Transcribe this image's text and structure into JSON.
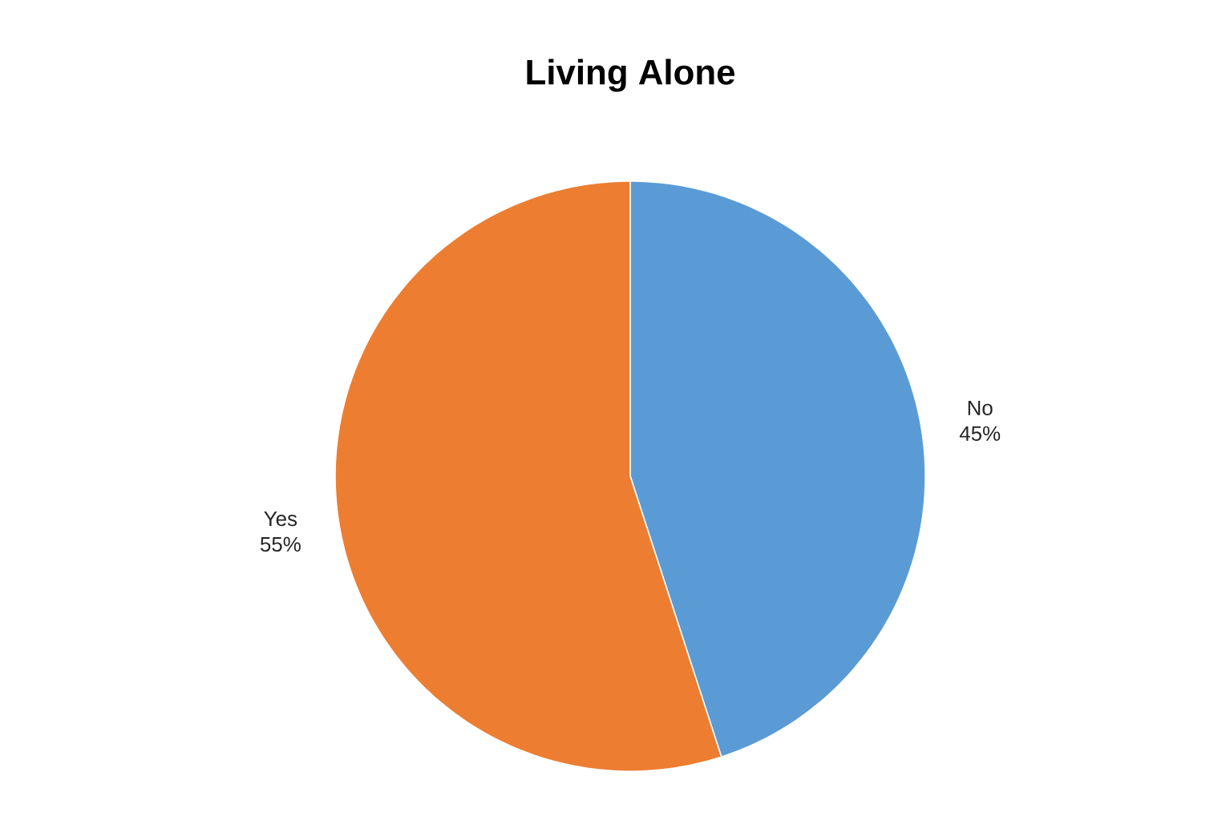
{
  "chart_data": {
    "type": "pie",
    "title": "Living Alone",
    "categories": [
      "No",
      "Yes"
    ],
    "values": [
      45,
      55
    ],
    "value_labels": [
      "45%",
      "55%"
    ],
    "colors": [
      "#5b9bd5",
      "#ed7d31"
    ]
  }
}
